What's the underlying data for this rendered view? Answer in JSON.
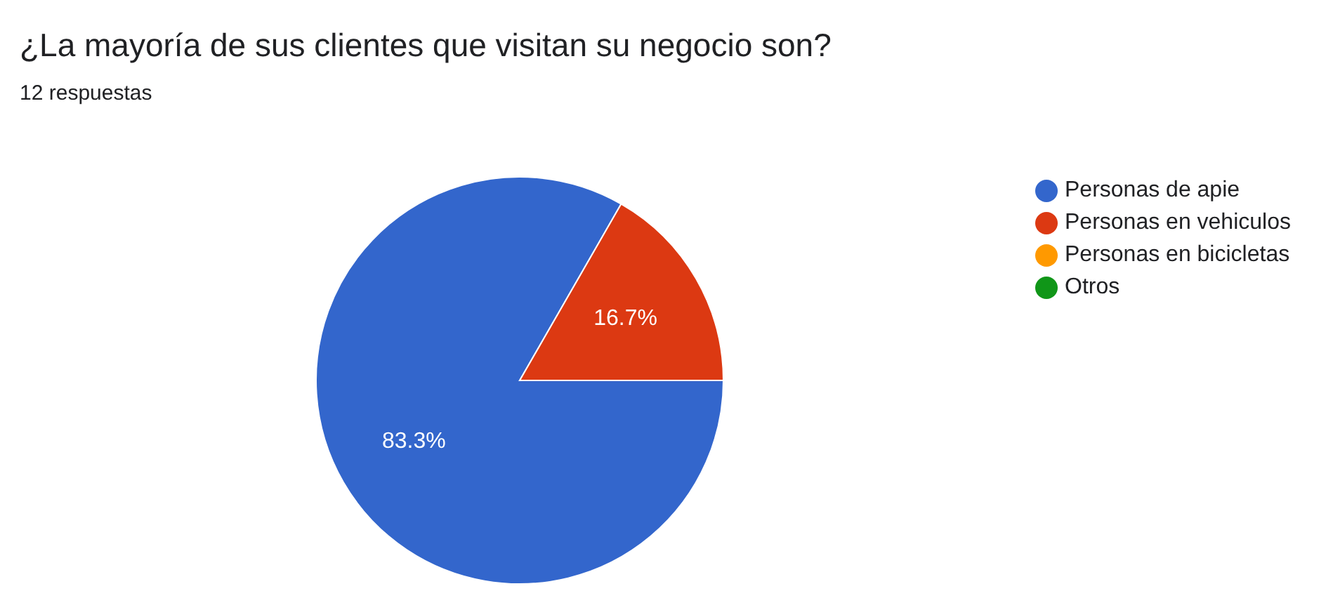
{
  "chart_data": {
    "type": "pie",
    "title": "¿La mayoría de sus clientes que visitan su negocio son?",
    "subtitle": "12 respuestas",
    "categories": [
      "Personas de apie",
      "Personas en vehiculos",
      "Personas en bicicletas",
      "Otros"
    ],
    "values": [
      83.3,
      16.7,
      0,
      0
    ],
    "colors": [
      "#3366cc",
      "#dc3912",
      "#ff9900",
      "#109618"
    ],
    "value_labels": [
      "83.3%",
      "16.7%",
      null,
      null
    ],
    "legend": "right"
  }
}
